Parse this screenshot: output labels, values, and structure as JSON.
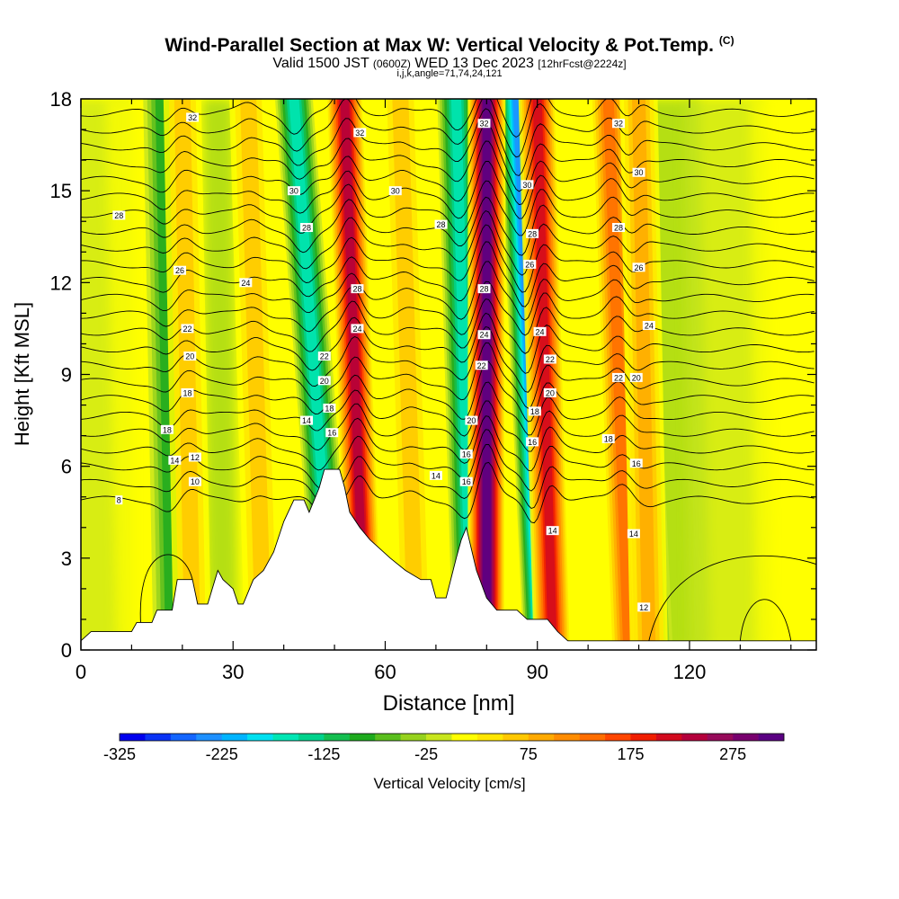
{
  "title": "Wind-Parallel Section at Max W: Vertical Velocity & Pot.Temp.",
  "copyright": "(C)",
  "subtitle_main": "Valid 1500 JST",
  "subtitle_z": "(0600Z)",
  "subtitle_date": "WED 13 Dec 2023",
  "subtitle_fcst": "[12hrFcst@2224z]",
  "subtitle2": "i,j,k,angle=71,74,24,121",
  "chart_data": {
    "type": "heatmap",
    "xlabel": "Distance [nm]",
    "ylabel": "Height [Kft MSL]",
    "xlim": [
      0,
      145
    ],
    "ylim": [
      0,
      18
    ],
    "xticks": [
      0,
      30,
      60,
      90,
      120
    ],
    "yticks": [
      0,
      3,
      6,
      9,
      12,
      15,
      18
    ],
    "colorbar": {
      "label": "Vertical Velocity [cm/s]",
      "min": -325,
      "max": 325,
      "step": 25,
      "tick_labels": [
        "-325",
        "-225",
        "-125",
        "-25",
        "75",
        "175",
        "275"
      ],
      "colors": [
        "#0000ee",
        "#0a33f5",
        "#1466ff",
        "#1e90ff",
        "#00b4ff",
        "#00e0f0",
        "#00e6b4",
        "#00d28c",
        "#14be50",
        "#1eaa1e",
        "#5abe1e",
        "#96d21e",
        "#c8e61e",
        "#ffff00",
        "#ffe600",
        "#ffc800",
        "#ffaa00",
        "#ff8c00",
        "#ff6e00",
        "#ff4600",
        "#f01e00",
        "#d20a1e",
        "#b4003c",
        "#960a5a",
        "#78006e",
        "#5a0082"
      ]
    },
    "updraft_bands": [
      {
        "x0": 22,
        "x1": 20,
        "w": 70
      },
      {
        "x0": 36,
        "x1": 33,
        "w": 60
      },
      {
        "x0": 56,
        "x1": 52,
        "w": 225
      },
      {
        "x0": 66,
        "x1": 63,
        "w": 50
      },
      {
        "x0": 80,
        "x1": 80,
        "w": 300
      },
      {
        "x0": 93,
        "x1": 90,
        "w": 200
      },
      {
        "x0": 108,
        "x1": 104,
        "w": 125
      },
      {
        "x0": 112,
        "x1": 110,
        "w": 75
      }
    ],
    "downdraft_bands": [
      {
        "x0": 50,
        "x1": 42,
        "w": -150
      },
      {
        "x0": 77,
        "x1": 74,
        "w": -150
      },
      {
        "x0": 91,
        "x1": 86,
        "w": -225
      },
      {
        "x0": 113,
        "x1": 108,
        "w": -100
      },
      {
        "x0": 18,
        "x1": 16,
        "w": -80
      }
    ],
    "terrain": [
      [
        0,
        0.3
      ],
      [
        2,
        0.6
      ],
      [
        10,
        0.6
      ],
      [
        11,
        0.9
      ],
      [
        14,
        0.9
      ],
      [
        15,
        1.3
      ],
      [
        18,
        1.3
      ],
      [
        19,
        2.3
      ],
      [
        22,
        2.3
      ],
      [
        23,
        1.5
      ],
      [
        25,
        1.5
      ],
      [
        27,
        2.6
      ],
      [
        28,
        2.3
      ],
      [
        30,
        2.0
      ],
      [
        31,
        1.5
      ],
      [
        32,
        1.5
      ],
      [
        34,
        2.3
      ],
      [
        36,
        2.6
      ],
      [
        38,
        3.2
      ],
      [
        40,
        4.2
      ],
      [
        42,
        4.9
      ],
      [
        44,
        4.9
      ],
      [
        45,
        4.5
      ],
      [
        47,
        5.3
      ],
      [
        48,
        5.9
      ],
      [
        51,
        5.9
      ],
      [
        52,
        5.3
      ],
      [
        53,
        4.5
      ],
      [
        55,
        4.0
      ],
      [
        57,
        3.6
      ],
      [
        59,
        3.3
      ],
      [
        61,
        3.0
      ],
      [
        64,
        2.6
      ],
      [
        67,
        2.3
      ],
      [
        69,
        2.3
      ],
      [
        70,
        1.7
      ],
      [
        72,
        1.7
      ],
      [
        74,
        3.0
      ],
      [
        75,
        3.6
      ],
      [
        76,
        4.0
      ],
      [
        78,
        2.6
      ],
      [
        80,
        1.7
      ],
      [
        82,
        1.3
      ],
      [
        86,
        1.3
      ],
      [
        88,
        1.0
      ],
      [
        92,
        1.0
      ],
      [
        94,
        0.6
      ],
      [
        96,
        0.3
      ],
      [
        145,
        0.3
      ]
    ],
    "isotherm_levels": [
      8,
      10,
      12,
      14,
      16,
      18,
      20,
      22,
      24,
      26,
      28,
      30,
      32
    ],
    "isotherm_labels": [
      {
        "text": "32",
        "x": 22,
        "y": 17.4
      },
      {
        "text": "32",
        "x": 55,
        "y": 16.9
      },
      {
        "text": "32",
        "x": 79.5,
        "y": 17.2
      },
      {
        "text": "32",
        "x": 106,
        "y": 17.2
      },
      {
        "text": "30",
        "x": 42,
        "y": 15.0
      },
      {
        "text": "30",
        "x": 62,
        "y": 15.0
      },
      {
        "text": "30",
        "x": 88,
        "y": 15.2
      },
      {
        "text": "30",
        "x": 110,
        "y": 15.6
      },
      {
        "text": "28",
        "x": 7.5,
        "y": 14.2
      },
      {
        "text": "28",
        "x": 44.5,
        "y": 13.8
      },
      {
        "text": "28",
        "x": 71,
        "y": 13.9
      },
      {
        "text": "28",
        "x": 89,
        "y": 13.6
      },
      {
        "text": "28",
        "x": 106,
        "y": 13.8
      },
      {
        "text": "26",
        "x": 19.5,
        "y": 12.4
      },
      {
        "text": "26",
        "x": 88.5,
        "y": 12.6
      },
      {
        "text": "26",
        "x": 110,
        "y": 12.5
      },
      {
        "text": "24",
        "x": 32.5,
        "y": 12.0
      },
      {
        "text": "24",
        "x": 54.5,
        "y": 10.5
      },
      {
        "text": "24",
        "x": 79.5,
        "y": 10.3
      },
      {
        "text": "24",
        "x": 90.5,
        "y": 10.4
      },
      {
        "text": "24",
        "x": 112,
        "y": 10.6
      },
      {
        "text": "28",
        "x": 54.5,
        "y": 11.8
      },
      {
        "text": "28",
        "x": 79.5,
        "y": 11.8
      },
      {
        "text": "22",
        "x": 21,
        "y": 10.5
      },
      {
        "text": "22",
        "x": 48,
        "y": 9.6
      },
      {
        "text": "22",
        "x": 79,
        "y": 9.3
      },
      {
        "text": "22",
        "x": 92.5,
        "y": 9.5
      },
      {
        "text": "22",
        "x": 106,
        "y": 8.9
      },
      {
        "text": "20",
        "x": 21.5,
        "y": 9.6
      },
      {
        "text": "20",
        "x": 48,
        "y": 8.8
      },
      {
        "text": "20",
        "x": 77,
        "y": 7.5
      },
      {
        "text": "20",
        "x": 92.5,
        "y": 8.4
      },
      {
        "text": "20",
        "x": 109.5,
        "y": 8.9
      },
      {
        "text": "18",
        "x": 21,
        "y": 8.4
      },
      {
        "text": "18",
        "x": 49,
        "y": 7.9
      },
      {
        "text": "18",
        "x": 17,
        "y": 7.2
      },
      {
        "text": "18",
        "x": 89.5,
        "y": 7.8
      },
      {
        "text": "18",
        "x": 104,
        "y": 6.9
      },
      {
        "text": "16",
        "x": 49.5,
        "y": 7.1
      },
      {
        "text": "16",
        "x": 76,
        "y": 6.4
      },
      {
        "text": "16",
        "x": 89,
        "y": 6.8
      },
      {
        "text": "16",
        "x": 109.5,
        "y": 6.1
      },
      {
        "text": "16",
        "x": 76,
        "y": 5.5
      },
      {
        "text": "14",
        "x": 44.5,
        "y": 7.5
      },
      {
        "text": "14",
        "x": 18.5,
        "y": 6.2
      },
      {
        "text": "14",
        "x": 70,
        "y": 5.7
      },
      {
        "text": "14",
        "x": 93,
        "y": 3.9
      },
      {
        "text": "14",
        "x": 109,
        "y": 3.8
      },
      {
        "text": "12",
        "x": 22.5,
        "y": 6.3
      },
      {
        "text": "12",
        "x": 111,
        "y": 1.4
      },
      {
        "text": "10",
        "x": 22.5,
        "y": 5.5
      },
      {
        "text": "8",
        "x": 7.5,
        "y": 4.9
      }
    ]
  }
}
